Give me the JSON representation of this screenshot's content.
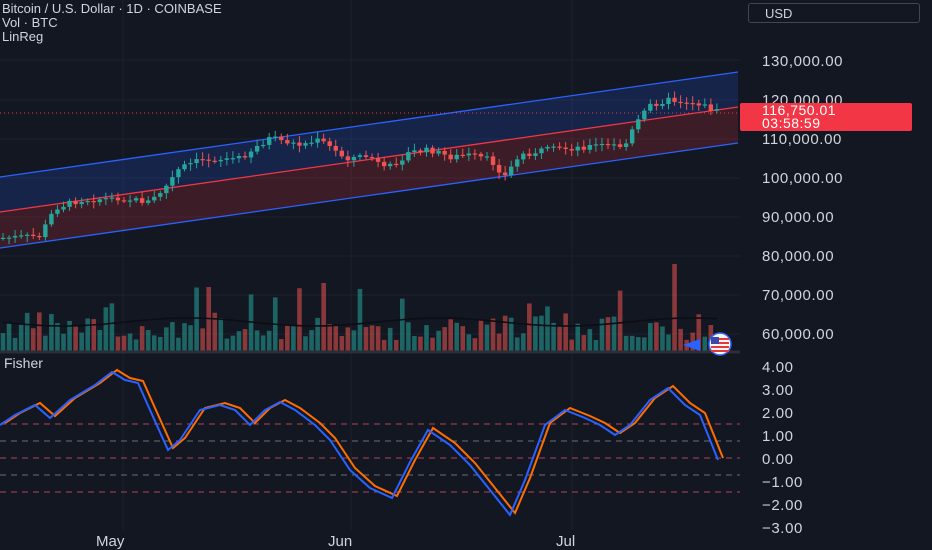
{
  "header": {
    "title": "Bitcoin / U.S. Dollar · 1D · COINBASE",
    "vol_label": "Vol · BTC",
    "linreg_label": "LinReg"
  },
  "currency_selector": "USD",
  "price_tag": {
    "price": "116,750.01",
    "countdown": "03:58:59",
    "color": "#f23645"
  },
  "price_axis": {
    "labels": [
      "130,000.00",
      "120,000.00",
      "110,000.00",
      "100,000.00",
      "90,000.00",
      "80,000.00",
      "70,000.00",
      "60,000.00"
    ]
  },
  "fisher_panel": {
    "title": "Fisher",
    "axis_labels": [
      "4.00",
      "3.00",
      "2.00",
      "1.00",
      "0.00",
      "−1.00",
      "−2.00",
      "−3.00"
    ],
    "level_lines": [
      1.5,
      0.75,
      -0.75,
      -1.5
    ],
    "fisher_color": "#2962ff",
    "trigger_color": "#ff6d00"
  },
  "time_axis": {
    "labels": [
      "May",
      "Jun",
      "Jul"
    ]
  },
  "colors": {
    "up": "#26a69a",
    "down": "#ef5350",
    "channel_upper": "#2962ff",
    "channel_mid": "#f23645"
  },
  "icons": {
    "flag": "us-flag-icon"
  }
}
